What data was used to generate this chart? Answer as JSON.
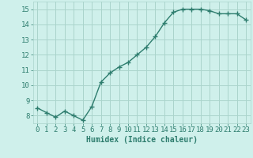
{
  "x": [
    0,
    1,
    2,
    3,
    4,
    5,
    6,
    7,
    8,
    9,
    10,
    11,
    12,
    13,
    14,
    15,
    16,
    17,
    18,
    19,
    20,
    21,
    22,
    23
  ],
  "y": [
    8.5,
    8.2,
    7.9,
    8.3,
    8.0,
    7.7,
    8.6,
    10.2,
    10.8,
    11.2,
    11.5,
    12.0,
    12.5,
    13.2,
    14.1,
    14.8,
    15.0,
    15.0,
    15.0,
    14.9,
    14.7,
    14.7,
    14.7,
    14.3
  ],
  "line_color": "#2e7d6e",
  "marker": "+",
  "marker_size": 4,
  "marker_linewidth": 1.0,
  "linewidth": 1.0,
  "bg_color": "#cff0eb",
  "grid_color": "#aad4cc",
  "xlabel": "Humidex (Indice chaleur)",
  "ylim": [
    7.5,
    15.5
  ],
  "xlim": [
    -0.5,
    23.5
  ],
  "yticks": [
    8,
    9,
    10,
    11,
    12,
    13,
    14,
    15
  ],
  "xticks": [
    0,
    1,
    2,
    3,
    4,
    5,
    6,
    7,
    8,
    9,
    10,
    11,
    12,
    13,
    14,
    15,
    16,
    17,
    18,
    19,
    20,
    21,
    22,
    23
  ],
  "tick_color": "#2e7d6e",
  "label_color": "#2e7d6e",
  "xlabel_fontsize": 7,
  "tick_fontsize": 6.5
}
